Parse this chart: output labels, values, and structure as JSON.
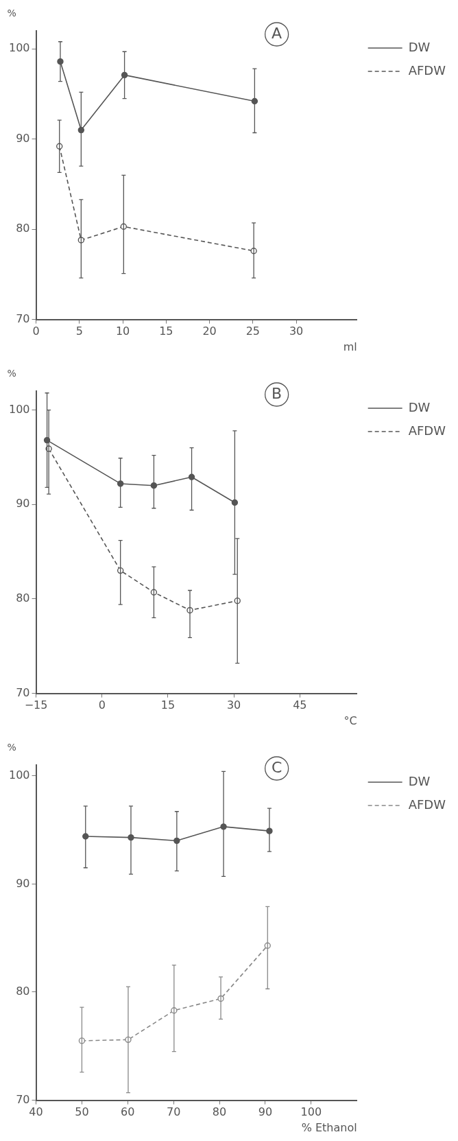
{
  "chart_data": [
    {
      "type": "line",
      "title": "A",
      "ylabel": "%",
      "xlabel": "ml",
      "xlim": [
        0,
        37
      ],
      "xticks": [
        0,
        5,
        10,
        15,
        20,
        25,
        30
      ],
      "ylim": [
        70,
        102
      ],
      "yticks": [
        70,
        80,
        90,
        100
      ],
      "grid": false,
      "legend": "top right",
      "marker": "circle",
      "series": [
        {
          "name": "DW",
          "color": "#555555",
          "line_style": "solid",
          "x": [
            2.8,
            5.2,
            10.2,
            25.2
          ],
          "values": [
            98.6,
            91.0,
            97.1,
            94.2
          ],
          "errors": [
            [
              96.4,
              100.8
            ],
            [
              87.0,
              95.2
            ],
            [
              94.5,
              99.7
            ],
            [
              90.7,
              97.8
            ]
          ]
        },
        {
          "name": "AFDW",
          "color": "#555555",
          "line_style": "dashed",
          "x": [
            2.7,
            5.2,
            10.1,
            25.1
          ],
          "values": [
            89.2,
            78.8,
            80.3,
            77.6
          ],
          "errors": [
            [
              86.3,
              92.1
            ],
            [
              74.6,
              83.3
            ],
            [
              75.1,
              86.0
            ],
            [
              74.6,
              80.7
            ]
          ]
        }
      ]
    },
    {
      "type": "line",
      "title": "B",
      "ylabel": "%",
      "xlabel": "°C",
      "xlim": [
        -15,
        58
      ],
      "xticks": [
        -15,
        0,
        15,
        30,
        45
      ],
      "ylim": [
        70,
        102
      ],
      "yticks": [
        70,
        80,
        90,
        100
      ],
      "grid": false,
      "legend": "top right",
      "marker": "circle",
      "series": [
        {
          "name": "DW",
          "color": "#555555",
          "line_style": "solid",
          "x": [
            -12.5,
            4.2,
            11.8,
            20.4,
            30.2
          ],
          "values": [
            96.8,
            92.2,
            92.0,
            92.9,
            90.2
          ],
          "errors": [
            [
              91.8,
              101.8
            ],
            [
              89.7,
              94.9
            ],
            [
              89.6,
              95.2
            ],
            [
              89.4,
              96.0
            ],
            [
              82.6,
              97.8
            ]
          ]
        },
        {
          "name": "AFDW",
          "color": "#555555",
          "line_style": "dashed",
          "x": [
            -12.1,
            4.2,
            11.8,
            20.0,
            30.8
          ],
          "values": [
            95.9,
            83.0,
            80.7,
            78.8,
            79.8
          ],
          "errors": [
            [
              91.1,
              100.0
            ],
            [
              79.4,
              86.2
            ],
            [
              78.0,
              83.4
            ],
            [
              75.9,
              80.9
            ],
            [
              73.2,
              86.4
            ]
          ]
        }
      ]
    },
    {
      "type": "line",
      "title": "C",
      "ylabel": "%",
      "xlabel": "% Ethanol",
      "xlim": [
        40,
        110
      ],
      "xticks": [
        40,
        50,
        60,
        70,
        80,
        90,
        100
      ],
      "ylim": [
        70,
        101
      ],
      "yticks": [
        70,
        80,
        90,
        100
      ],
      "grid": false,
      "legend": "top right",
      "marker": "circle",
      "series": [
        {
          "name": "DW",
          "color": "#555555",
          "line_style": "solid",
          "x": [
            50.8,
            60.7,
            70.7,
            80.9,
            90.9
          ],
          "values": [
            94.4,
            94.3,
            94.0,
            95.3,
            94.9
          ],
          "errors": [
            [
              91.5,
              97.2
            ],
            [
              90.9,
              97.2
            ],
            [
              91.2,
              96.7
            ],
            [
              90.7,
              100.4
            ],
            [
              93.0,
              97.0
            ]
          ]
        },
        {
          "name": "AFDW",
          "color": "#888888",
          "line_style": "dashed",
          "x": [
            50.0,
            60.1,
            70.1,
            80.3,
            90.5
          ],
          "values": [
            75.5,
            75.6,
            78.3,
            79.4,
            84.3
          ],
          "errors": [
            [
              72.6,
              78.6
            ],
            [
              70.7,
              80.5
            ],
            [
              74.5,
              82.5
            ],
            [
              77.5,
              81.4
            ],
            [
              80.3,
              87.9
            ]
          ]
        }
      ]
    }
  ]
}
